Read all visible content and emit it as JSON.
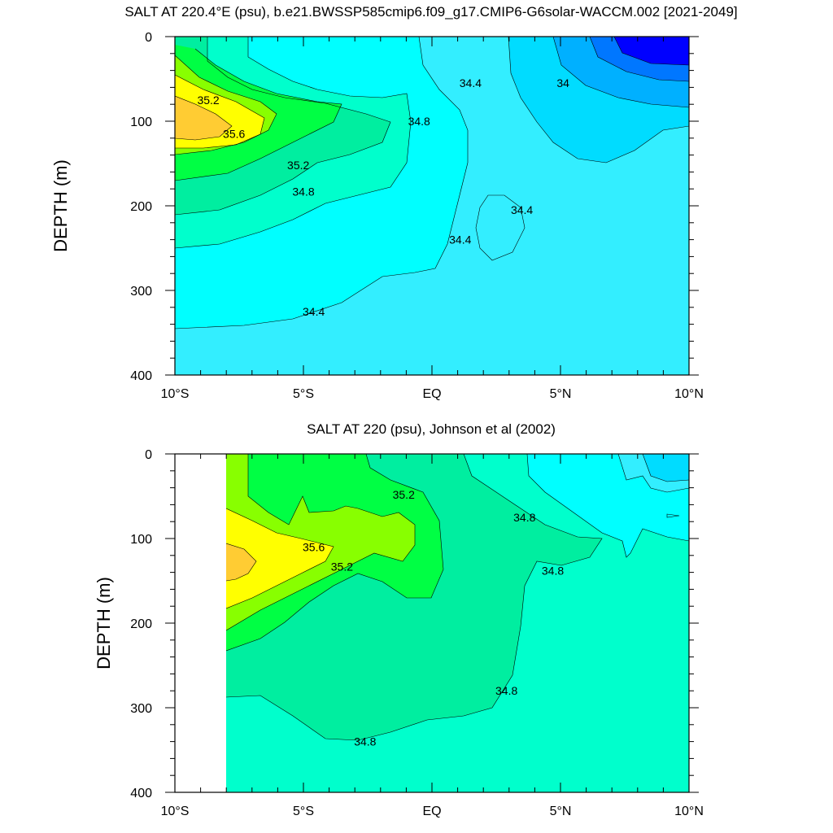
{
  "chart_data": [
    {
      "type": "contour",
      "title": "SALT AT 220.4°E (psu), b.e21.BWSSP585cmip6.f09_g17.CMIP6-G6solar-WACCM.002 [2021-2049]",
      "ylabel": "DEPTH (m)",
      "xlim": [
        -10,
        10
      ],
      "ylim": [
        400,
        0
      ],
      "x_tick_values": [
        -10,
        -5,
        0,
        5,
        10
      ],
      "x_tick_labels": [
        "10°S",
        "5°S",
        "EQ",
        "5°N",
        "10°N"
      ],
      "y_tick_values": [
        0,
        100,
        200,
        300,
        400
      ],
      "y_tick_labels": [
        "0",
        "100",
        "200",
        "300",
        "400"
      ],
      "contour_labels": [
        {
          "text": "35.2",
          "lat": -8.7,
          "depth": 75
        },
        {
          "text": "35.6",
          "lat": -7.7,
          "depth": 115
        },
        {
          "text": "35.2",
          "lat": -5.2,
          "depth": 152
        },
        {
          "text": "34.8",
          "lat": -5.0,
          "depth": 183
        },
        {
          "text": "34.8",
          "lat": -0.5,
          "depth": 100
        },
        {
          "text": "34.4",
          "lat": 1.5,
          "depth": 55
        },
        {
          "text": "34",
          "lat": 5.1,
          "depth": 55
        },
        {
          "text": "34.4",
          "lat": 3.5,
          "depth": 205
        },
        {
          "text": "34.4",
          "lat": 1.1,
          "depth": 240
        },
        {
          "text": "34.4",
          "lat": -4.6,
          "depth": 325
        }
      ]
    },
    {
      "type": "contour",
      "title": "SALT AT 220 (psu), Johnson et al (2002)",
      "ylabel": "DEPTH (m)",
      "xlim": [
        -10,
        10
      ],
      "ylim": [
        400,
        0
      ],
      "x_tick_values": [
        -10,
        -5,
        0,
        5,
        10
      ],
      "x_tick_labels": [
        "10°S",
        "5°S",
        "EQ",
        "5°N",
        "10°N"
      ],
      "y_tick_values": [
        0,
        100,
        200,
        300,
        400
      ],
      "y_tick_labels": [
        "0",
        "100",
        "200",
        "300",
        "400"
      ],
      "contour_labels": [
        {
          "text": "35.2",
          "lat": -1.1,
          "depth": 48
        },
        {
          "text": "35.6",
          "lat": -4.6,
          "depth": 110
        },
        {
          "text": "35.2",
          "lat": -3.5,
          "depth": 133
        },
        {
          "text": "34.8",
          "lat": 3.6,
          "depth": 75
        },
        {
          "text": "34.8",
          "lat": 4.7,
          "depth": 138
        },
        {
          "text": "34.8",
          "lat": 2.9,
          "depth": 280
        },
        {
          "text": "34.8",
          "lat": -2.6,
          "depth": 340
        }
      ]
    }
  ],
  "colors": {
    "c_33_8": "#0000ff",
    "c_34_0": "#0077ff",
    "c_34_2": "#00b0ff",
    "c_34_4": "#00dcff",
    "c_34_6": "#33eeff",
    "c_34_8": "#00ffff",
    "c_35_0": "#00ffcc",
    "c_35_2a": "#00eea0",
    "c_35_2": "#00ff44",
    "c_35_4": "#88ff00",
    "c_35_6": "#ffff00",
    "c_35_8": "#ffcc33"
  }
}
